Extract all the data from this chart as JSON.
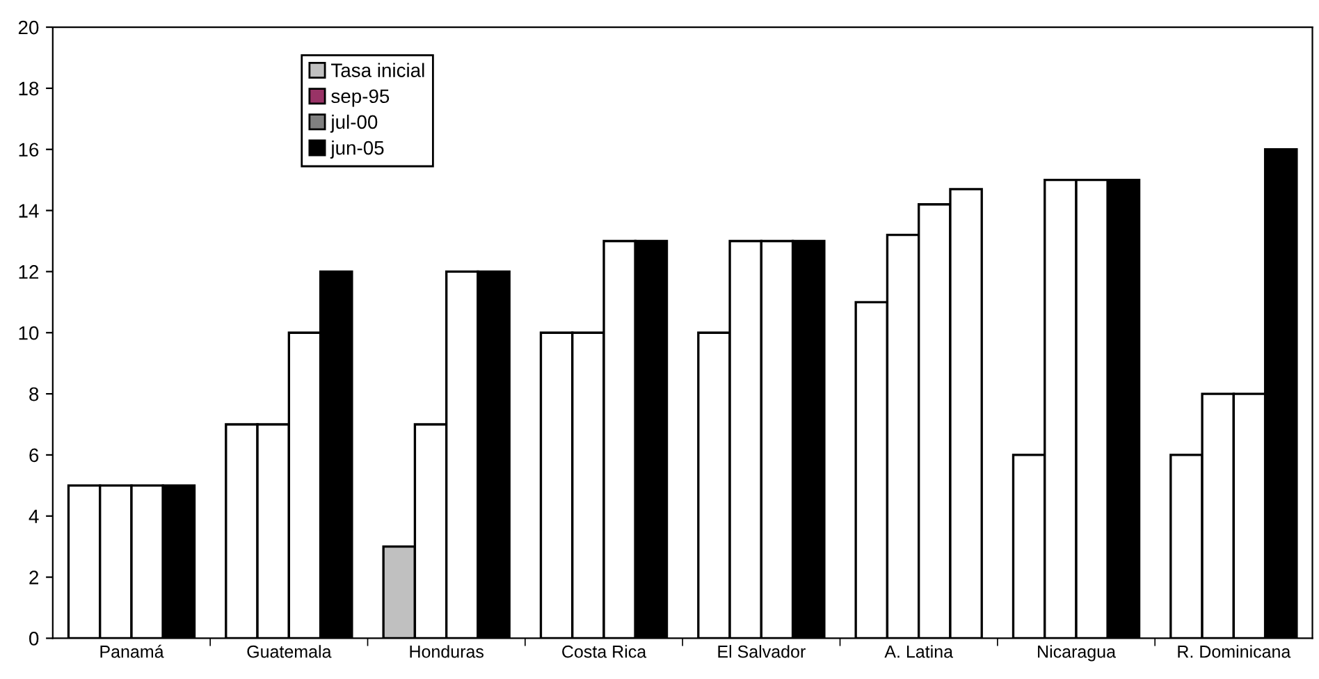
{
  "chart_data": {
    "type": "bar",
    "categories": [
      "Panamá",
      "Guatemala",
      "Honduras",
      "Costa Rica",
      "El Salvador",
      "A. Latina",
      "Nicaragua",
      "R. Dominicana"
    ],
    "series": [
      {
        "name": "Tasa inicial",
        "color": "#c0c0c0",
        "colors": [
          "#ffffff",
          "#ffffff",
          "#c0c0c0",
          "#ffffff",
          "#ffffff",
          "#ffffff",
          "#ffffff",
          "#ffffff"
        ],
        "values": [
          5,
          7,
          3,
          10,
          10,
          11,
          6,
          6
        ]
      },
      {
        "name": "sep-95",
        "color": "#993366",
        "colors": [
          "#ffffff",
          "#ffffff",
          "#ffffff",
          "#ffffff",
          "#ffffff",
          "#ffffff",
          "#ffffff",
          "#ffffff"
        ],
        "values": [
          5,
          7,
          7,
          10,
          13,
          13.2,
          15,
          8
        ]
      },
      {
        "name": "jul-00",
        "color": "#808080",
        "colors": [
          "#ffffff",
          "#ffffff",
          "#ffffff",
          "#ffffff",
          "#ffffff",
          "#ffffff",
          "#ffffff",
          "#ffffff"
        ],
        "values": [
          5,
          10,
          12,
          13,
          13,
          14.2,
          15,
          8
        ]
      },
      {
        "name": "jun-05",
        "color": "#000000",
        "colors": [
          "#000000",
          "#000000",
          "#000000",
          "#000000",
          "#000000",
          "#ffffff",
          "#000000",
          "#000000"
        ],
        "values": [
          5,
          12,
          12,
          13,
          13,
          14.7,
          15,
          16
        ]
      }
    ],
    "ylim": [
      0,
      20
    ],
    "yticks": [
      0,
      2,
      4,
      6,
      8,
      10,
      12,
      14,
      16,
      18,
      20
    ],
    "grid": false,
    "legend": "top left"
  }
}
